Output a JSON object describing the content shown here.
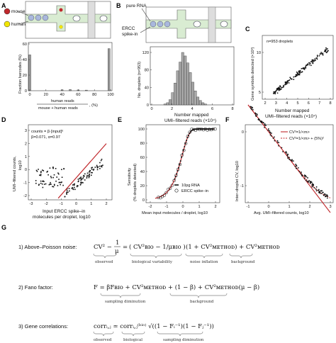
{
  "panel_labels": {
    "a": "A",
    "b": "B",
    "c": "C",
    "d": "D",
    "e": "E",
    "f": "F",
    "g": "G"
  },
  "colors": {
    "mouse": "#c0282c",
    "human": "#f2e600",
    "fit_line": "#c0282c",
    "bead": "#a9b8dd",
    "channel": "#d9ecd2"
  },
  "panel_a": {
    "legend_mouse": "mouse",
    "legend_human": "human",
    "ylabel": "Fraction barcodes (%)",
    "xlabel_num": "human reads",
    "xlabel_den": "mouse + human reads",
    "xlabel_unit": ", (%)",
    "xticks": [
      "0",
      "20",
      "40",
      "60",
      "80",
      "100"
    ],
    "yticks": [
      "0",
      "20",
      "40",
      "60"
    ]
  },
  "panel_b": {
    "label_rna": "pure RNA",
    "label_ercc_1": "ERCC",
    "label_ercc_2": "spike-in",
    "ylabel": "No. droplets (n=953)",
    "xlabel_1": "Number mapped",
    "xlabel_2": "UMI–filtered reads (×10⁴)",
    "xticks": [
      "0",
      "2",
      "4",
      "6",
      "8"
    ],
    "yticks": [
      "0",
      "40",
      "80",
      "120"
    ]
  },
  "panel_c": {
    "annotation": "n=953 droplets",
    "ylabel": "Gene symbols detected (×10³)",
    "xlabel_1": "Number mapped",
    "xlabel_2": "UMI–filtered reads (×10⁴)",
    "xticks": [
      "2",
      "3",
      "4",
      "5",
      "6",
      "7",
      "8"
    ],
    "yticks": [
      "5",
      "10"
    ]
  },
  "panel_d": {
    "formula": "counts = β·[input]ᵅ",
    "params": "β=0.071, α=0.97",
    "ylabel_1": "UMI–filtered counts,",
    "ylabel_2": "log10",
    "xlabel_1": "Input ERCC spike–in",
    "xlabel_2": "molecules per droplet, log10",
    "xticks": [
      "-3",
      "-2",
      "-1",
      "0",
      "1",
      "2"
    ],
    "yticks": [
      "-2",
      "-1",
      "0",
      "1",
      "2",
      "3"
    ]
  },
  "panel_e": {
    "ylabel_1": "Sensitivity",
    "ylabel_2": "(% droplets detected)",
    "xlabel": "Mean input molecules / droplet, log10",
    "legend_1": "10pg RNA",
    "legend_2": "ERCC spike–in",
    "xticks": [
      "-2",
      "-1",
      "0",
      "1",
      "2"
    ],
    "yticks": [
      "0",
      "20",
      "40",
      "60",
      "80",
      "100"
    ]
  },
  "panel_f": {
    "ylabel_1": "Inter–droplet CV, log10",
    "xlabel": "Avg. UMI–filtered counts, log10",
    "legend_1": "CV²=1/<m>",
    "legend_2": "CV²=1/<m> + (5%)²",
    "xticks": [
      "-1",
      "0",
      "1",
      "2",
      "3"
    ],
    "yticks": [
      "-1",
      "0"
    ]
  },
  "panel_g": {
    "item1_label": "1) Above–Poisson noise:",
    "item1_under_1": "observed",
    "item1_under_2": "biological variability",
    "item1_under_3": "noise inflation",
    "item1_under_4": "background",
    "item2_label": "2) Fano factor:",
    "item2_under_1": "sampling diminution",
    "item2_under_2": "background",
    "item3_label": "3) Gene correlations:",
    "item3_under_1": "observed",
    "item3_under_2": "biological",
    "item3_under_3": "sampling diminution"
  }
}
